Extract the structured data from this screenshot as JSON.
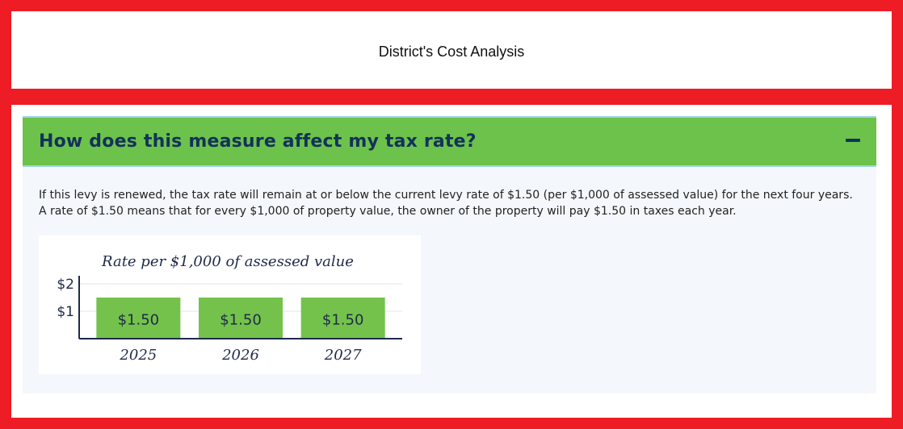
{
  "page": {
    "title": "District's Cost Analysis"
  },
  "accordion": {
    "title": "How does this measure affect my tax rate?",
    "toggle_icon": "minus-icon",
    "body_text": "If this levy is renewed, the tax rate will remain at or below the current levy rate of $1.50 (per $1,000 of assessed value) for the next four years. A rate of $1.50 means that for every $1,000 of property value, the owner of the property will pay $1.50 in taxes each year."
  },
  "colors": {
    "frame_red": "#ee1c25",
    "header_green": "#6cc24a",
    "bar_green": "#74c24c",
    "navy": "#13315c"
  },
  "chart_data": {
    "type": "bar",
    "title": "Rate per $1,000 of assessed value",
    "categories": [
      "2025",
      "2026",
      "2027"
    ],
    "values": [
      1.5,
      1.5,
      1.5
    ],
    "data_labels": [
      "$1.50",
      "$1.50",
      "$1.50"
    ],
    "yticks": [
      {
        "value": 1,
        "label": "$1"
      },
      {
        "value": 2,
        "label": "$2"
      }
    ],
    "ylim": [
      0,
      2
    ],
    "xlabel": "",
    "ylabel": "",
    "grid": true
  }
}
